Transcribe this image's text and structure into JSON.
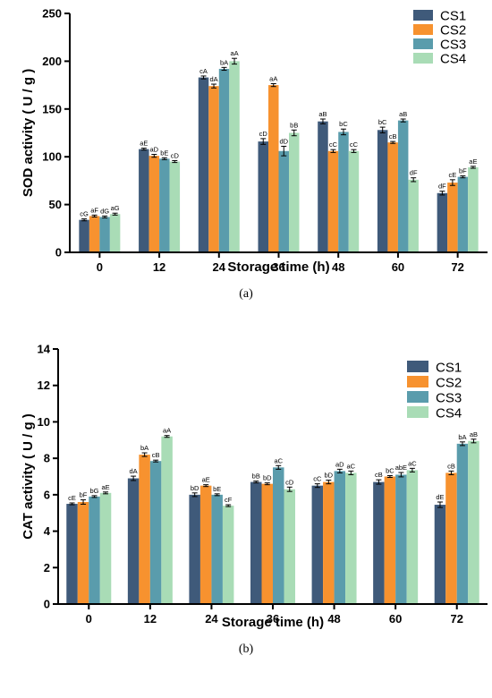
{
  "chart_data": [
    {
      "type": "bar",
      "panel": "(a)",
      "xlabel": "Storage time (h)",
      "ylabel": "SOD activity ( U / g )",
      "categories": [
        "0",
        "12",
        "24",
        "36",
        "48",
        "60",
        "72"
      ],
      "ylim": [
        0,
        250
      ],
      "yticks": [
        0,
        50,
        100,
        150,
        200,
        250
      ],
      "legend_position": "top-right",
      "grid": false,
      "series": [
        {
          "name": "CS1",
          "color": "#3f5a7a",
          "values": [
            34,
            108,
            183,
            116,
            137,
            128,
            62
          ],
          "errors": [
            1,
            1,
            1.5,
            3,
            2.5,
            3,
            2
          ],
          "labels": [
            "cG",
            "aE",
            "cA",
            "cD",
            "aB",
            "bC",
            "dF"
          ]
        },
        {
          "name": "CS2",
          "color": "#f7922f",
          "values": [
            38,
            101,
            174,
            175,
            106,
            115,
            73
          ],
          "errors": [
            1,
            1.5,
            2,
            1.5,
            1.5,
            1,
            3
          ],
          "labels": [
            "aF",
            "aD",
            "dA",
            "aA",
            "cC",
            "cB",
            "cE"
          ]
        },
        {
          "name": "CS3",
          "color": "#5a9cac",
          "values": [
            37,
            98,
            192,
            106,
            126,
            138,
            79
          ],
          "errors": [
            1,
            1,
            1.5,
            5,
            3,
            1.5,
            1
          ],
          "labels": [
            "dG",
            "bE",
            "bA",
            "dD",
            "bC",
            "aB",
            "bF"
          ]
        },
        {
          "name": "CS4",
          "color": "#a9dcb6",
          "values": [
            40,
            95,
            200,
            125,
            106,
            76,
            89
          ],
          "errors": [
            1,
            1,
            3,
            3,
            1.5,
            2,
            1
          ],
          "labels": [
            "aG",
            "cD",
            "aA",
            "bB",
            "cC",
            "dF",
            "aE"
          ]
        }
      ]
    },
    {
      "type": "bar",
      "panel": "(b)",
      "xlabel": "Storage time (h)",
      "ylabel": "CAT activity ( U / g )",
      "categories": [
        "0",
        "12",
        "24",
        "36",
        "48",
        "60",
        "72"
      ],
      "ylim": [
        0,
        14
      ],
      "yticks": [
        0,
        2,
        4,
        6,
        8,
        10,
        12,
        14
      ],
      "legend_position": "top-right",
      "grid": false,
      "series": [
        {
          "name": "CS1",
          "color": "#3f5a7a",
          "values": [
            5.5,
            6.9,
            6.0,
            6.7,
            6.5,
            6.7,
            5.45
          ],
          "errors": [
            0.05,
            0.12,
            0.1,
            0.05,
            0.1,
            0.12,
            0.15
          ],
          "labels": [
            "cE",
            "dA",
            "bD",
            "bB",
            "cC",
            "cB",
            "dE"
          ]
        },
        {
          "name": "CS2",
          "color": "#f7922f",
          "values": [
            5.6,
            8.2,
            6.5,
            6.6,
            6.7,
            7.0,
            7.2
          ],
          "errors": [
            0.12,
            0.1,
            0.05,
            0.05,
            0.1,
            0.05,
            0.1
          ],
          "labels": [
            "bF",
            "bA",
            "aE",
            "bD",
            "bD",
            "bC",
            "cB"
          ]
        },
        {
          "name": "CS3",
          "color": "#5a9cac",
          "values": [
            5.9,
            7.85,
            6.0,
            7.5,
            7.3,
            7.1,
            8.8
          ],
          "errors": [
            0.05,
            0.05,
            0.05,
            0.1,
            0.1,
            0.12,
            0.1
          ],
          "labels": [
            "bG",
            "cB",
            "bE",
            "aC",
            "aD",
            "abE",
            "bA"
          ]
        },
        {
          "name": "CS4",
          "color": "#a9dcb6",
          "values": [
            6.1,
            9.2,
            5.4,
            6.3,
            7.2,
            7.35,
            8.95
          ],
          "errors": [
            0.05,
            0.05,
            0.05,
            0.12,
            0.1,
            0.1,
            0.1
          ],
          "labels": [
            "aE",
            "aA",
            "cF",
            "cD",
            "aC",
            "aC",
            "aB"
          ]
        }
      ]
    }
  ]
}
